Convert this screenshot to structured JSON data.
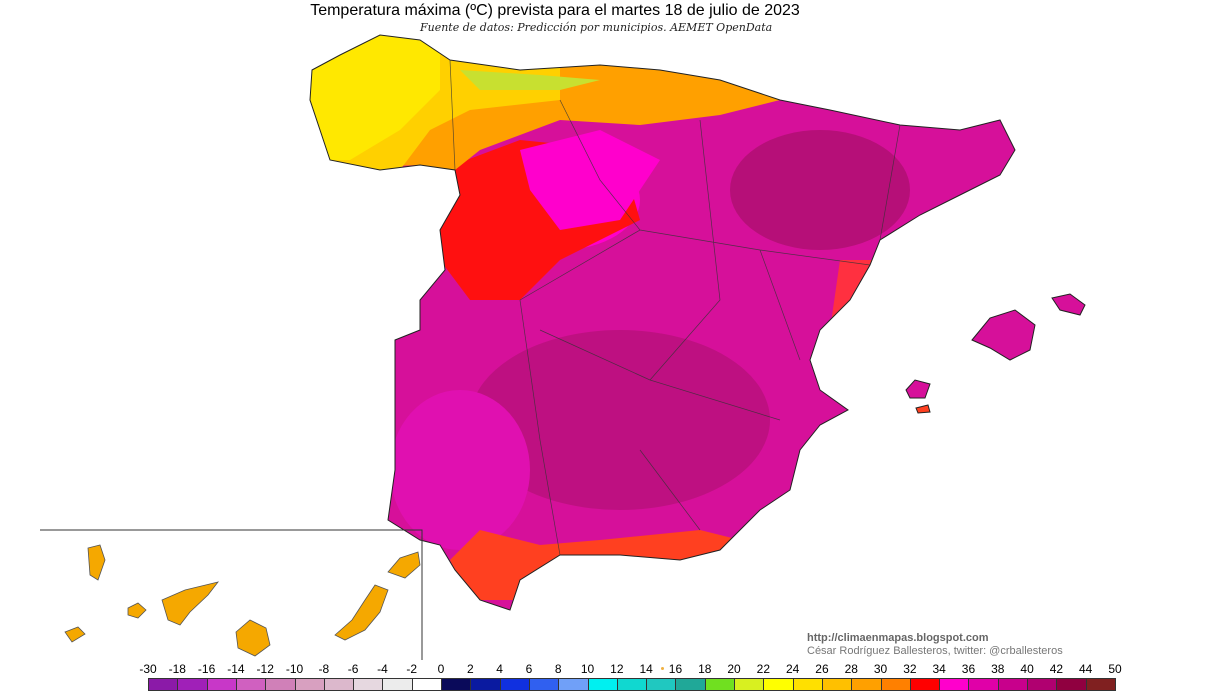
{
  "title": "Temperatura máxima (ºC) prevista para el martes 18 de julio de 2023",
  "subtitle": "Fuente de datos: Predicción por municipios. AEMET OpenData",
  "credits": {
    "url": "http://climaenmapas.blogspot.com",
    "author": "César Rodríguez Ballesteros, twitter: @crballesteros"
  },
  "legend": {
    "unit": "ºC",
    "labels": [
      "-30",
      "-18",
      "-16",
      "-14",
      "-12",
      "-10",
      "-8",
      "-6",
      "-4",
      "-2",
      "0",
      "2",
      "4",
      "6",
      "8",
      "10",
      "12",
      "14",
      "16",
      "18",
      "20",
      "22",
      "24",
      "26",
      "28",
      "30",
      "32",
      "34",
      "36",
      "38",
      "40",
      "42",
      "44",
      "50"
    ],
    "colors": [
      "#8b1aa8",
      "#a020b8",
      "#c837c8",
      "#d060c0",
      "#d080b8",
      "#d8a0c0",
      "#dcb8cc",
      "#e6d8e0",
      "#ececec",
      "#ffffff",
      "#0a0a5a",
      "#0a1aa0",
      "#1030e0",
      "#3060f0",
      "#70a0f8",
      "#00f0f0",
      "#10d8d0",
      "#20c8c0",
      "#20a898",
      "#70e020",
      "#d8f020",
      "#ffff00",
      "#ffe000",
      "#ffc000",
      "#ffa000",
      "#ff8000",
      "#ff0000",
      "#ff00cc",
      "#e000a8",
      "#c8008c",
      "#b00070",
      "#900040",
      "#802020"
    ]
  },
  "regions": {
    "mainland": "Península",
    "balearics": "Baleares",
    "canaries": "Canarias"
  }
}
